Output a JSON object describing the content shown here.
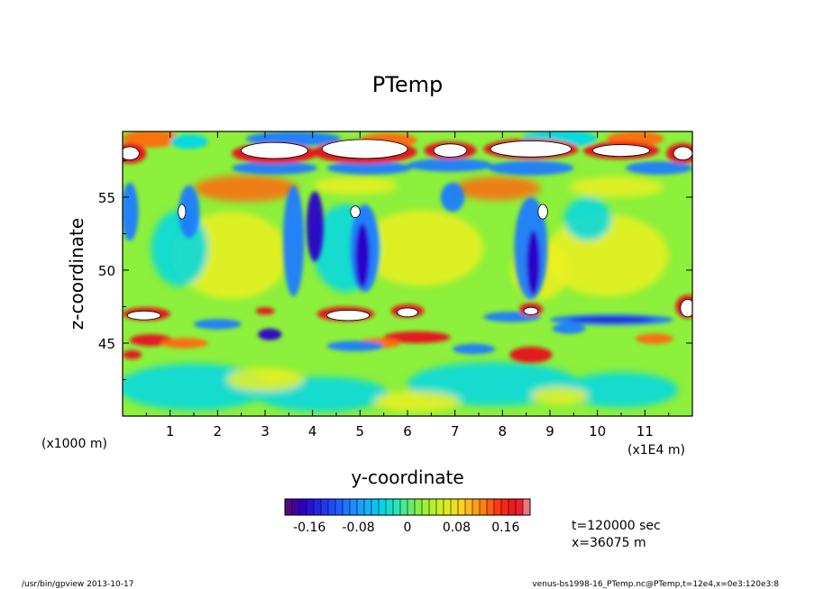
{
  "chart_data": {
    "type": "heatmap",
    "title": "PTemp",
    "xlabel": "y-coordinate",
    "ylabel": "z-coordinate",
    "x_scale_label": "(x1000 m)",
    "x_unit_label": "(x1E4 m)",
    "xlim": [
      0,
      12
    ],
    "ylim": [
      40,
      59.5
    ],
    "x_ticks": [
      "1",
      "2",
      "3",
      "4",
      "5",
      "6",
      "7",
      "8",
      "9",
      "10",
      "11"
    ],
    "x_tick_values": [
      1,
      2,
      3,
      4,
      5,
      6,
      7,
      8,
      9,
      10,
      11
    ],
    "y_ticks": [
      "45",
      "50",
      "55"
    ],
    "y_tick_values": [
      45,
      50,
      55
    ],
    "colorbar": {
      "ticks": [
        "-0.16",
        "-0.08",
        "0",
        "0.08",
        "0.16"
      ],
      "tick_values": [
        -0.16,
        -0.08,
        0,
        0.08,
        0.16
      ],
      "range": [
        -0.2,
        0.2
      ]
    },
    "colors": {
      "strong_negative": "#2a00c8",
      "negative": "#1e7bff",
      "weak_negative": "#00d8e8",
      "neutral": "#8cf03c",
      "weak_positive": "#ecf020",
      "positive": "#ff6a10",
      "strong_positive": "#e8101e",
      "saturated": "#ffffff"
    }
  },
  "info": {
    "time": "t=120000 sec",
    "position": "x=36075 m"
  },
  "footer": {
    "left": "/usr/bin/gpview   2013-10-17",
    "right": "venus-bs1998-16_PTemp.nc@PTemp,t=12e4,x=0e3:120e3:8"
  }
}
